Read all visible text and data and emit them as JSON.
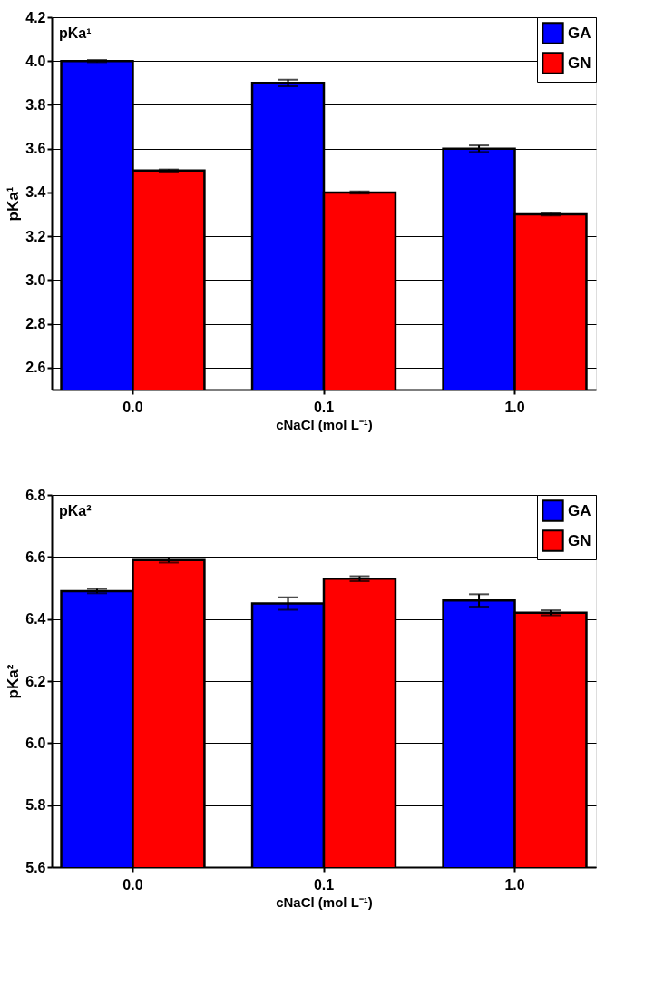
{
  "chart_data": [
    {
      "type": "bar",
      "xlabel": "cNaCl (mol L⁻¹)",
      "ylabel": "pKa¹",
      "categories": [
        "0.0",
        "0.1",
        "1.0"
      ],
      "series": [
        {
          "name": "GA",
          "color": "#0000ff",
          "values": [
            4.0,
            3.9,
            3.6
          ],
          "errors": [
            0.005,
            0.015,
            0.015
          ]
        },
        {
          "name": "GN",
          "color": "#ff0000",
          "values": [
            3.5,
            3.4,
            3.3
          ],
          "errors": [
            0.005,
            0.005,
            0.005
          ]
        }
      ],
      "ylim": [
        2.5,
        4.2
      ],
      "yticks": [
        2.6,
        2.8,
        {
          "value": 3,
          "label": "3.0"
        },
        3.2,
        3.4,
        3.6,
        3.8,
        {
          "value": 4,
          "label": "4.0"
        },
        4.2
      ],
      "grid": "y",
      "legend": "top right",
      "annotations": [
        "pKa¹"
      ]
    },
    {
      "type": "bar",
      "xlabel": "cNaCl (mol L⁻¹)",
      "ylabel": "pKa²",
      "categories": [
        "0.0",
        "0.1",
        "1.0"
      ],
      "series": [
        {
          "name": "GA",
          "color": "#0000ff",
          "values": [
            6.49,
            6.45,
            6.46
          ],
          "errors": [
            0.007,
            0.02,
            0.02
          ]
        },
        {
          "name": "GN",
          "color": "#ff0000",
          "values": [
            6.59,
            6.53,
            6.42
          ],
          "errors": [
            0.008,
            0.008,
            0.008
          ]
        }
      ],
      "ylim": [
        5.6,
        6.8
      ],
      "yticks": [
        5.6,
        5.8,
        {
          "value": 6,
          "label": "6.0"
        },
        6.2,
        6.4,
        6.6,
        6.8
      ],
      "grid": "y",
      "legend": "top right",
      "annotations": [
        "pKa²"
      ]
    }
  ]
}
